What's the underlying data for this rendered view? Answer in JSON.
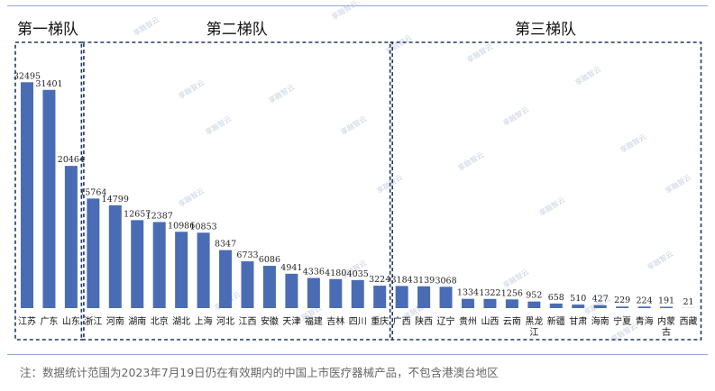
{
  "chart_data": {
    "type": "bar",
    "bar_color": "#4a6cb5",
    "box_color": "#1f3864",
    "groups": [
      {
        "title": "第一梯队",
        "start": 0,
        "end": 3
      },
      {
        "title": "第二梯队",
        "start": 3,
        "end": 17
      },
      {
        "title": "第三梯队",
        "start": 17,
        "end": 31
      }
    ],
    "categories": [
      "江苏",
      "广东",
      "山东",
      "浙江",
      "河南",
      "湖南",
      "北京",
      "湖北",
      "上海",
      "河北",
      "江西",
      "安徽",
      "天津",
      "福建",
      "吉林",
      "四川",
      "重庆",
      "广西",
      "陕西",
      "辽宁",
      "贵州",
      "山西",
      "云南",
      "黑龙江",
      "新疆",
      "甘肃",
      "海南",
      "宁夏",
      "青海",
      "内蒙古",
      "西藏"
    ],
    "values": [
      32495,
      31401,
      20464,
      15764,
      14799,
      12657,
      12387,
      10986,
      10853,
      8347,
      6733,
      6086,
      4941,
      4336,
      4180,
      4035,
      3224,
      3184,
      3139,
      3068,
      1334,
      1322,
      1256,
      952,
      658,
      510,
      427,
      229,
      224,
      191,
      21
    ],
    "value_labels": [
      "32495",
      "31401",
      "20464",
      "15764",
      "14799",
      "12657",
      "12387",
      "10986",
      "10853",
      "8347",
      "6733",
      "6086",
      "4941",
      "4336",
      "4180",
      "4035",
      "3224",
      "3184",
      "3139",
      "3068",
      "1334",
      "1322",
      "1256",
      "952",
      "658",
      "510",
      "427",
      "229",
      "224",
      "191",
      "21"
    ],
    "category_lines": [
      [
        "江苏"
      ],
      [
        "广东"
      ],
      [
        "山东"
      ],
      [
        "浙江"
      ],
      [
        "河南"
      ],
      [
        "湖南"
      ],
      [
        "北京"
      ],
      [
        "湖北"
      ],
      [
        "上海"
      ],
      [
        "河北"
      ],
      [
        "江西"
      ],
      [
        "安徽"
      ],
      [
        "天津"
      ],
      [
        "福建"
      ],
      [
        "吉林"
      ],
      [
        "四川"
      ],
      [
        "重庆"
      ],
      [
        "广西"
      ],
      [
        "陕西"
      ],
      [
        "辽宁"
      ],
      [
        "贵州"
      ],
      [
        "山西"
      ],
      [
        "云南"
      ],
      [
        "黑龙",
        "江"
      ],
      [
        "新疆"
      ],
      [
        "甘肃"
      ],
      [
        "海南"
      ],
      [
        "宁夏"
      ],
      [
        "青海"
      ],
      [
        "内蒙",
        "古"
      ],
      [
        "西藏"
      ]
    ],
    "ylim": [
      0,
      35000
    ]
  },
  "watermark": "享融智云",
  "footnote": "注：数据统计范围为2023年7月19日仍在有效期内的中国上市医疗器械产品，不包含港澳台地区"
}
